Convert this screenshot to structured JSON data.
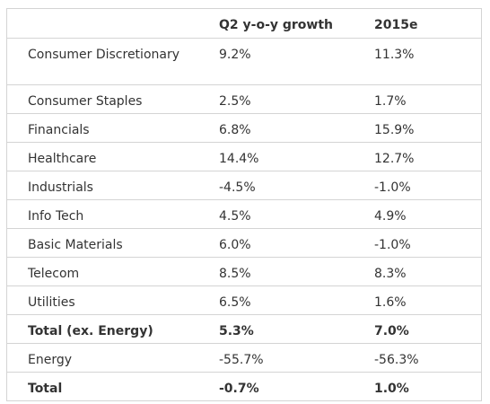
{
  "table": {
    "headers": [
      "",
      "Q2 y-o-y growth",
      "2015e"
    ],
    "rows": [
      {
        "sector": "Consumer Discretionary",
        "q2": "9.2%",
        "e2015": "11.3%"
      },
      {
        "sector": "Consumer Staples",
        "q2": "2.5%",
        "e2015": "1.7%"
      },
      {
        "sector": "Financials",
        "q2": "6.8%",
        "e2015": "15.9%"
      },
      {
        "sector": "Healthcare",
        "q2": "14.4%",
        "e2015": "12.7%"
      },
      {
        "sector": "Industrials",
        "q2": "-4.5%",
        "e2015": "-1.0%"
      },
      {
        "sector": "Info Tech",
        "q2": "4.5%",
        "e2015": "4.9%"
      },
      {
        "sector": "Basic Materials",
        "q2": "6.0%",
        "e2015": "-1.0%"
      },
      {
        "sector": "Telecom",
        "q2": "8.5%",
        "e2015": "8.3%"
      },
      {
        "sector": "Utilities",
        "q2": "6.5%",
        "e2015": "1.6%"
      },
      {
        "sector": "Total (ex. Energy)",
        "q2": "5.3%",
        "e2015": "7.0%"
      },
      {
        "sector": "Energy",
        "q2": "-55.7%",
        "e2015": "-56.3%"
      },
      {
        "sector": "Total",
        "q2": "-0.7%",
        "e2015": "1.0%"
      }
    ]
  }
}
